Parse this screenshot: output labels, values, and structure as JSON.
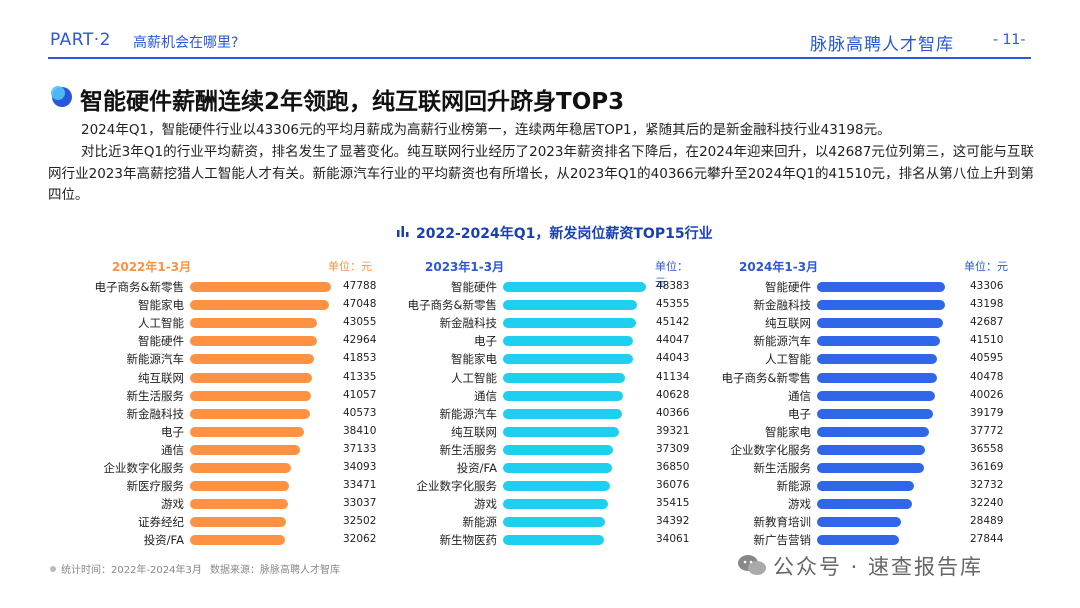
{
  "header": {
    "part": "PART·2",
    "section": "高薪机会在哪里?",
    "brand": "脉脉高聘人才智库",
    "page": "- 11-"
  },
  "title": "智能硬件薪酬连续2年领跑，纯互联网回升跻身TOP3",
  "paragraph1": "2024年Q1，智能硬件行业以43306元的平均月薪成为高薪行业榜第一，连续两年稳居TOP1，紧随其后的是新金融科技行业43198元。",
  "paragraph2": "对比近3年Q1的行业平均薪资，排名发生了显著变化。纯互联网行业经历了2023年薪资排名下降后，在2024年迎来回升，以42687元位列第三，这可能与互联网行业2023年高薪挖猎人工智能人才有关。新能源汽车行业的平均薪资也有所增长，从2023年Q1的40366元攀升至2024年Q1的41510元，排名从第八位上升到第四位。",
  "colors": {
    "accent": "#2b57d9",
    "orange": "#ff9142",
    "cyan": "#1ecff0",
    "blue": "#3066e8"
  },
  "chart_data": {
    "title": "2022-2024年Q1，新发岗位薪资TOP15行业",
    "type": "bar",
    "panels": [
      {
        "title": "2022年1-3月",
        "unit": "单位：元",
        "color": "#ff9142",
        "categories": [
          "电子商务&新零售",
          "智能家电",
          "人工智能",
          "智能硬件",
          "新能源汽车",
          "纯互联网",
          "新生活服务",
          "新金融科技",
          "电子",
          "通信",
          "企业数字化服务",
          "新医疗服务",
          "游戏",
          "证券经纪",
          "投资/FA"
        ],
        "values": [
          47788,
          47048,
          43055,
          42964,
          41853,
          41335,
          41057,
          40573,
          38410,
          37133,
          34093,
          33471,
          33037,
          32502,
          32062
        ]
      },
      {
        "title": "2023年1-3月",
        "unit": "单位：元",
        "color": "#1ecff0",
        "categories": [
          "智能硬件",
          "电子商务&新零售",
          "新金融科技",
          "电子",
          "智能家电",
          "人工智能",
          "通信",
          "新能源汽车",
          "纯互联网",
          "新生活服务",
          "投资/FA",
          "企业数字化服务",
          "游戏",
          "新能源",
          "新生物医药"
        ],
        "values": [
          48383,
          45355,
          45142,
          44047,
          44043,
          41134,
          40628,
          40366,
          39321,
          37309,
          36850,
          36076,
          35415,
          34392,
          34061
        ]
      },
      {
        "title": "2024年1-3月",
        "unit": "单位：元",
        "color": "#3066e8",
        "categories": [
          "智能硬件",
          "新金融科技",
          "纯互联网",
          "新能源汽车",
          "人工智能",
          "电子商务&新零售",
          "通信",
          "电子",
          "智能家电",
          "企业数字化服务",
          "新生活服务",
          "新能源",
          "游戏",
          "新教育培训",
          "新广告营销"
        ],
        "values": [
          43306,
          43198,
          42687,
          41510,
          40595,
          40478,
          40026,
          39179,
          37772,
          36558,
          36169,
          32732,
          32240,
          28489,
          27844
        ]
      }
    ]
  },
  "footer": {
    "time": "统计时间：2022年-2024年3月",
    "source": "数据来源：脉脉高聘人才智库"
  },
  "watermark": "公众号 · 速查报告库"
}
